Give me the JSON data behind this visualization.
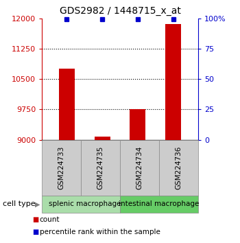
{
  "title": "GDS2982 / 1448715_x_at",
  "samples": [
    "GSM224733",
    "GSM224735",
    "GSM224734",
    "GSM224736"
  ],
  "counts": [
    10750,
    9080,
    9750,
    11850
  ],
  "percentile_ranks": [
    99,
    99,
    99,
    99
  ],
  "ymin": 9000,
  "ymax": 12000,
  "yticks": [
    9000,
    9750,
    10500,
    11250,
    12000
  ],
  "ytick_labels": [
    "9000",
    "9750",
    "10500",
    "11250",
    "12000"
  ],
  "y2ticks": [
    0,
    25,
    50,
    75,
    100
  ],
  "y2tick_labels": [
    "0",
    "25",
    "50",
    "75",
    "100%"
  ],
  "bar_color": "#cc0000",
  "marker_color": "#0000cc",
  "bar_width": 0.45,
  "cell_types": [
    {
      "label": "splenic macrophage",
      "color": "#aaddaa"
    },
    {
      "label": "intestinal macrophage",
      "color": "#66cc66"
    }
  ],
  "left_axis_color": "#cc0000",
  "right_axis_color": "#0000cc",
  "sample_box_color": "#cccccc",
  "sample_box_edge": "#888888",
  "cell_box_edge": "#888888"
}
